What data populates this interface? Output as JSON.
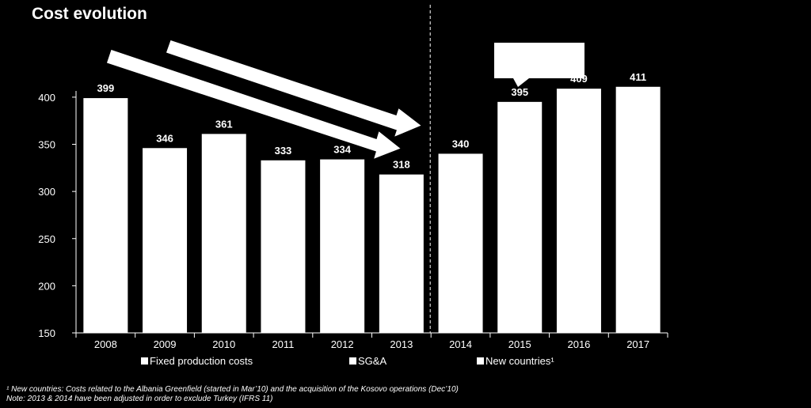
{
  "title": "Cost evolution",
  "footnotes": {
    "note1": "¹ New countries: Costs related to the Albania Greenfield (started in Mar’10) and the acquisition of the Kosovo operations (Dec’10)",
    "note2": "Note: 2013 & 2014 have been adjusted in order to exclude Turkey (IFRS 11)"
  },
  "chart_data": {
    "type": "bar",
    "categories": [
      "2008",
      "2009",
      "2010",
      "2011",
      "2012",
      "2013",
      "2014",
      "2015",
      "2016",
      "2017"
    ],
    "series": [
      {
        "name": "Fixed production costs",
        "values": [
          399,
          346,
          361,
          333,
          334,
          318,
          340,
          395,
          409,
          411
        ]
      }
    ],
    "value_labels": [
      "399",
      "346",
      "361",
      "333",
      "334",
      "318",
      "340",
      "395",
      "409",
      "411"
    ],
    "legend": [
      "Fixed production costs",
      "SG&A",
      "New countries¹"
    ],
    "legend_position": "bottom",
    "yticks": [
      150,
      200,
      250,
      300,
      350,
      400
    ],
    "ylim": [
      150,
      415
    ],
    "grid": false,
    "divider_after": "2013",
    "colors": {
      "bar": "#ffffff",
      "background": "#000000",
      "axis": "#ffffff"
    }
  }
}
